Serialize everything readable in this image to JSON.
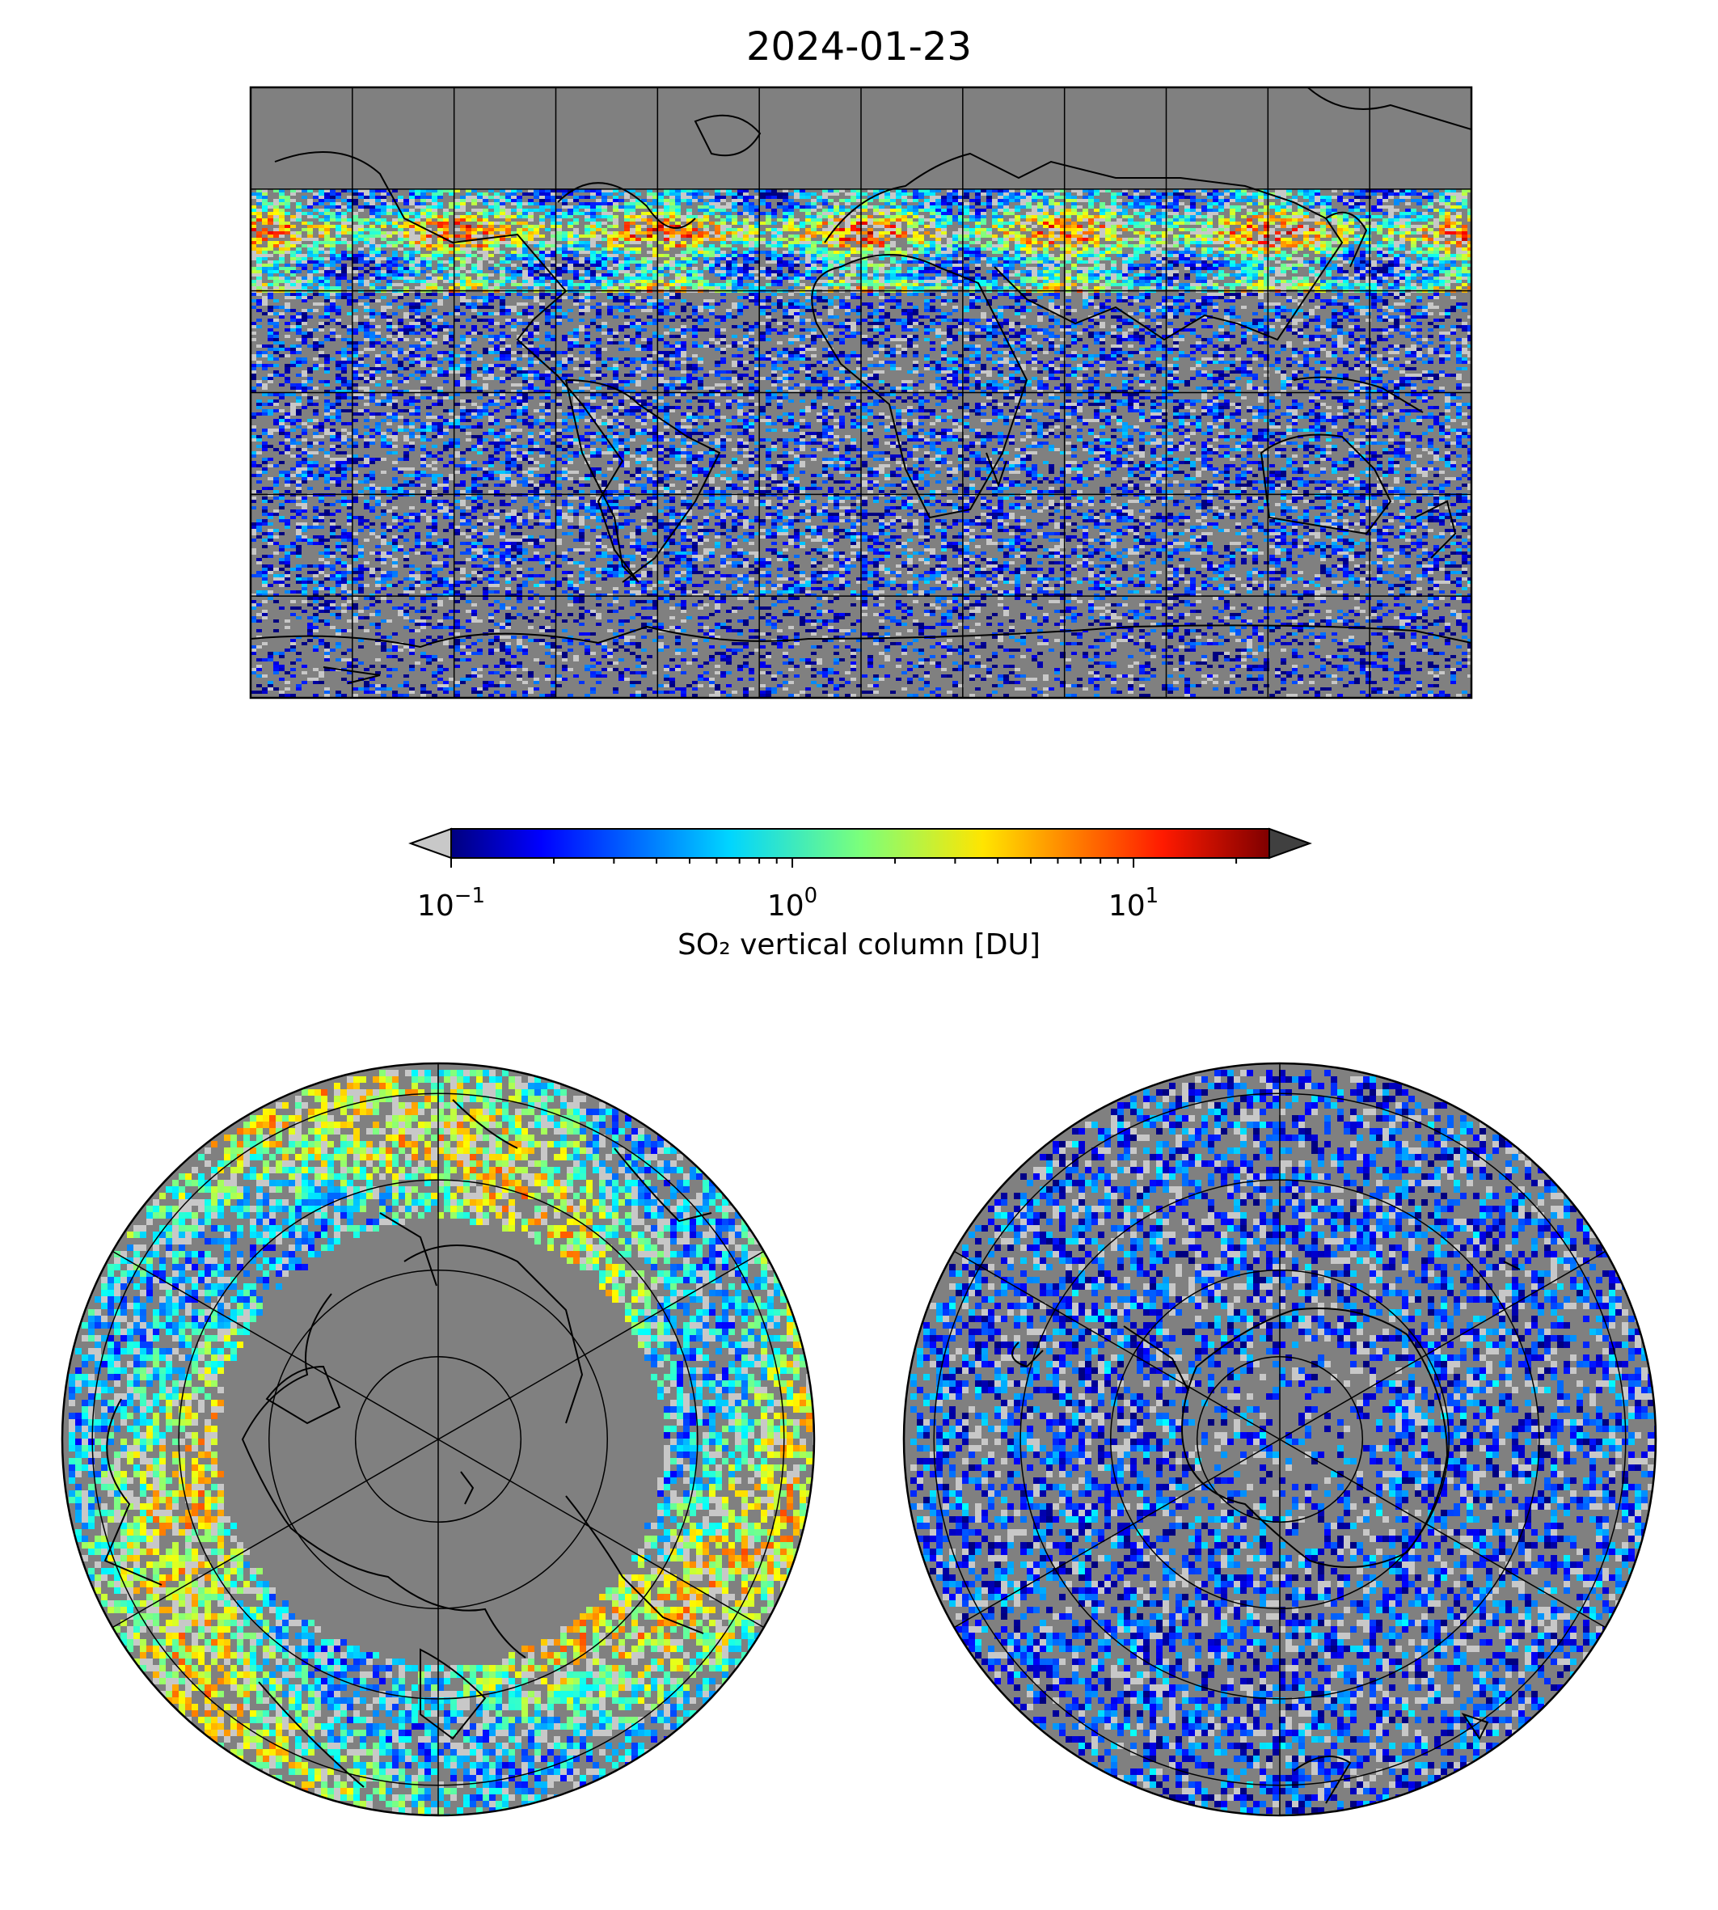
{
  "title": "2024-01-23",
  "colorbar": {
    "label": "SO₂ vertical column [DU]",
    "scale": "log",
    "colormap": "jet",
    "range": [
      0.1,
      25
    ],
    "under_color": "#c8c8c8",
    "over_color": "#404040",
    "ticks": [
      {
        "value": 0.1,
        "base": "10",
        "exp": "−1"
      },
      {
        "value": 1,
        "base": "10",
        "exp": "0"
      },
      {
        "value": 10,
        "base": "10",
        "exp": "1"
      }
    ]
  },
  "colors": {
    "background": "#808080",
    "low_values": "#c8c8c8",
    "coastline": "#000000",
    "grid": "#000000"
  },
  "maps": [
    {
      "id": "global",
      "projection": "equirectangular",
      "lon_range": [
        -180,
        180
      ],
      "lat_range": [
        -90,
        90
      ],
      "grid_step_deg": 30
    },
    {
      "id": "north-polar",
      "projection": "north polar stereographic",
      "lat_limit": 0,
      "meridian_step_deg": 60
    },
    {
      "id": "south-polar",
      "projection": "south polar stereographic",
      "lat_limit": 0,
      "meridian_step_deg": 60
    }
  ]
}
